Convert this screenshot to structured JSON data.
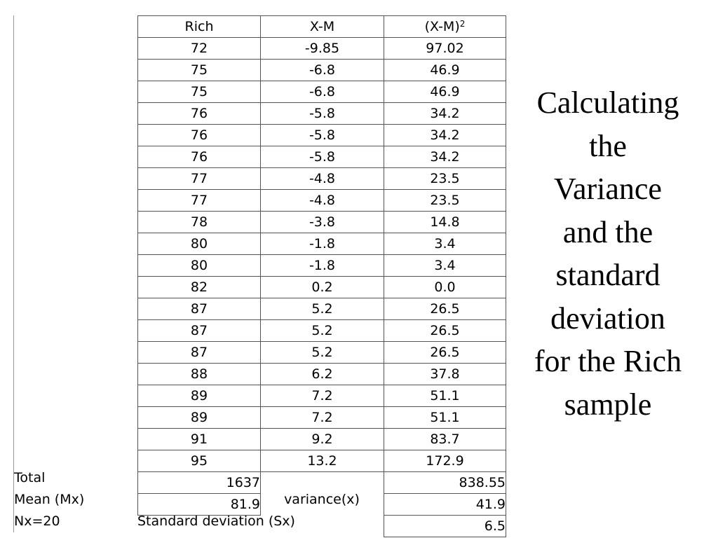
{
  "table": {
    "headers": [
      "Rich",
      "X-M",
      "(X-M)",
      "2"
    ],
    "rows": [
      [
        "72",
        "-9.85",
        "97.02"
      ],
      [
        "75",
        "-6.8",
        "46.9"
      ],
      [
        "75",
        "-6.8",
        "46.9"
      ],
      [
        "76",
        "-5.8",
        "34.2"
      ],
      [
        "76",
        "-5.8",
        "34.2"
      ],
      [
        "76",
        "-5.8",
        "34.2"
      ],
      [
        "77",
        "-4.8",
        "23.5"
      ],
      [
        "77",
        "-4.8",
        "23.5"
      ],
      [
        "78",
        "-3.8",
        "14.8"
      ],
      [
        "80",
        "-1.8",
        "3.4"
      ],
      [
        "80",
        "-1.8",
        "3.4"
      ],
      [
        "82",
        "0.2",
        "0.0"
      ],
      [
        "87",
        "5.2",
        "26.5"
      ],
      [
        "87",
        "5.2",
        "26.5"
      ],
      [
        "87",
        "5.2",
        "26.5"
      ],
      [
        "88",
        "6.2",
        "37.8"
      ],
      [
        "89",
        "7.2",
        "51.1"
      ],
      [
        "89",
        "7.2",
        "51.1"
      ],
      [
        "91",
        "9.2",
        "83.7"
      ],
      [
        "95",
        "13.2",
        "172.9"
      ]
    ]
  },
  "summary": {
    "total_label": "Total",
    "total_rich": "1637",
    "total_sq": "838.55",
    "mean_label": "Mean (Mx)",
    "mean_value": "81.9",
    "variance_label": "variance(x)",
    "variance_value": "41.9",
    "n_label": "Nx=20",
    "sd_label": "Standard deviation (Sx)",
    "sd_value": "6.5"
  },
  "title": {
    "lines": [
      "Calculating",
      "the",
      "Variance",
      "and the",
      "standard",
      "deviation",
      "for the Rich",
      "sample"
    ]
  }
}
